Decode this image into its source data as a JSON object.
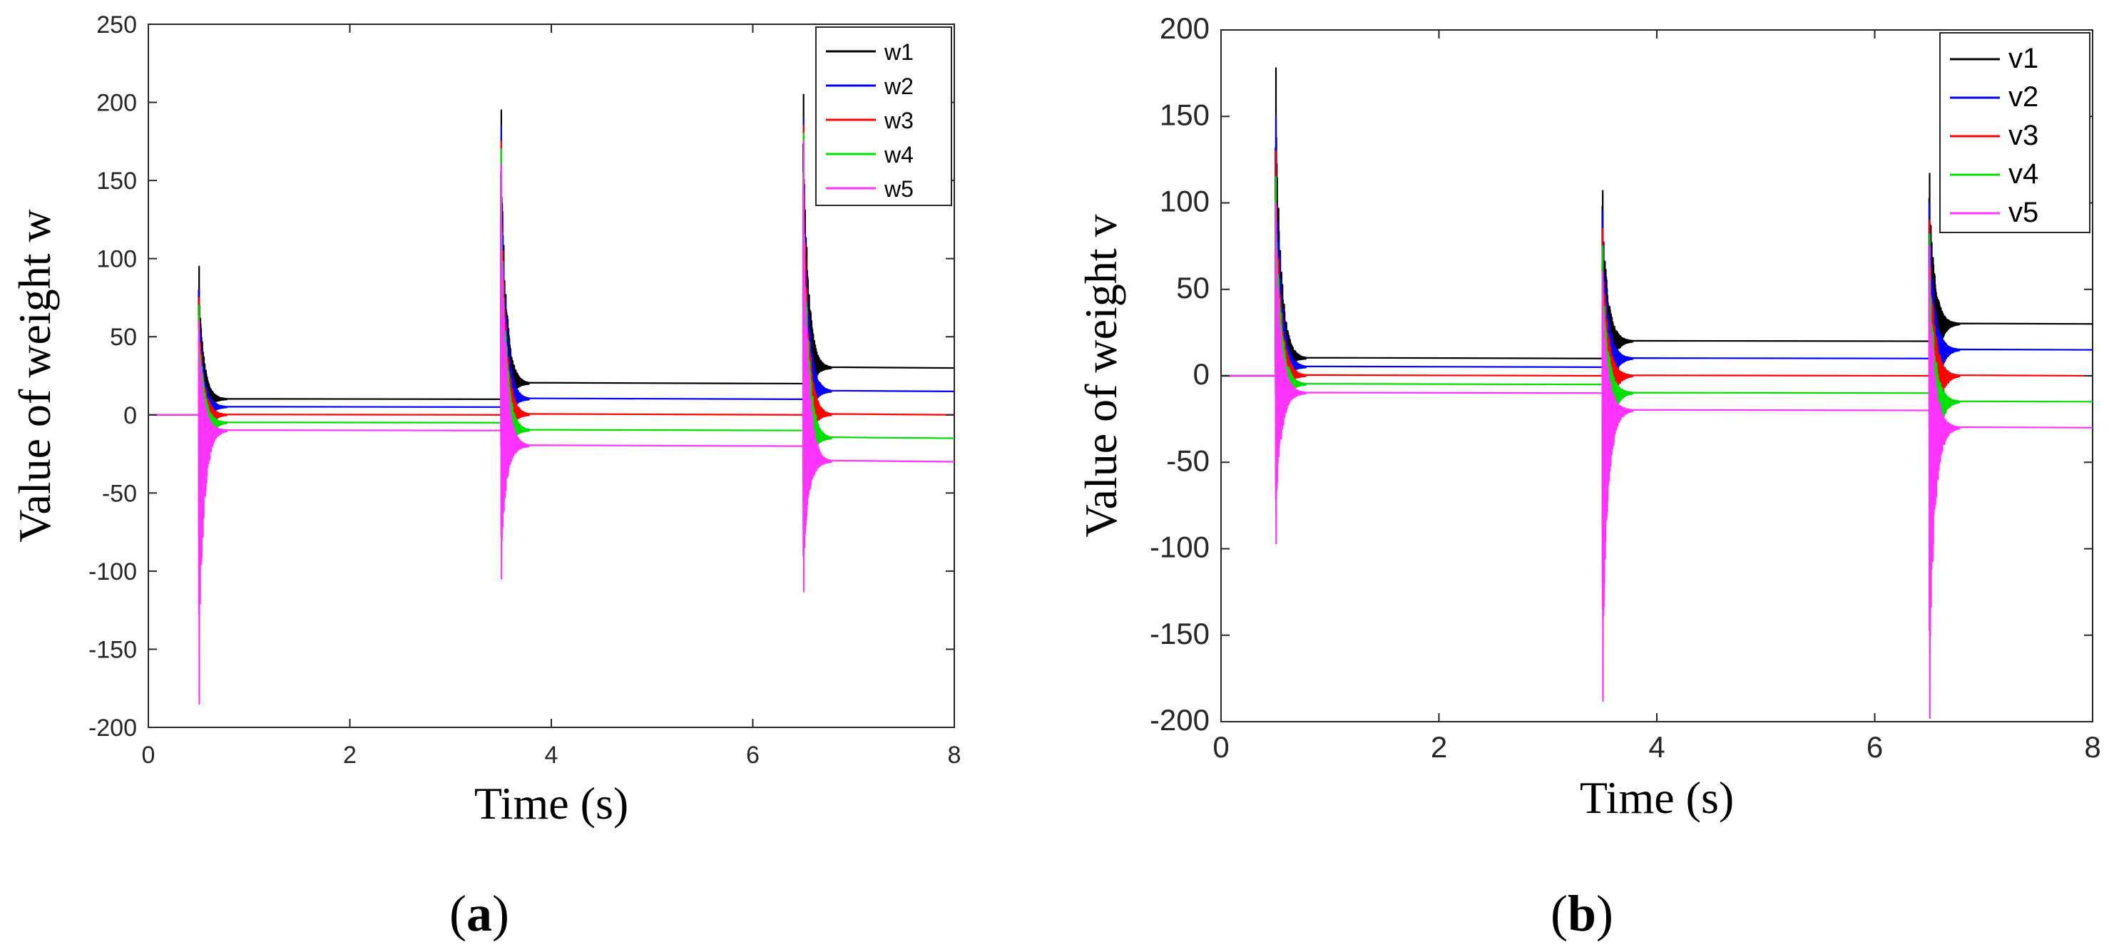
{
  "chart_data": [
    {
      "type": "line",
      "panel_label": "a",
      "xlabel": "Time (s)",
      "ylabel": "Value of weight w",
      "xlim": [
        0,
        8
      ],
      "ylim": [
        -200,
        250
      ],
      "xticks": [
        0,
        2,
        4,
        6,
        8
      ],
      "yticks": [
        -200,
        -150,
        -100,
        -50,
        0,
        50,
        100,
        150,
        200,
        250
      ],
      "legend_position": "top-right",
      "grid": false,
      "events": [
        0.5,
        3.5,
        6.5
      ],
      "series": [
        {
          "name": "w1",
          "color": "#000000",
          "segments": [
            {
              "t": [
                0.0,
                0.5
              ],
              "v": [
                0,
                0
              ]
            },
            {
              "t": [
                0.5,
                3.5
              ],
              "v": [
                10,
                10
              ],
              "spike_max": 95,
              "spike_min": -40
            },
            {
              "t": [
                3.5,
                6.5
              ],
              "v": [
                20,
                20
              ],
              "spike_max": 195,
              "spike_min": -60
            },
            {
              "t": [
                6.5,
                8.0
              ],
              "v": [
                30,
                30
              ],
              "spike_max": 205,
              "spike_min": -50
            }
          ]
        },
        {
          "name": "w2",
          "color": "#0000ff",
          "segments": [
            {
              "t": [
                0.0,
                0.5
              ],
              "v": [
                0,
                0
              ]
            },
            {
              "t": [
                0.5,
                3.5
              ],
              "v": [
                5,
                5
              ],
              "spike_max": 80,
              "spike_min": -60
            },
            {
              "t": [
                3.5,
                6.5
              ],
              "v": [
                10,
                10
              ],
              "spike_max": 185,
              "spike_min": -70
            },
            {
              "t": [
                6.5,
                8.0
              ],
              "v": [
                15,
                15
              ],
              "spike_max": 190,
              "spike_min": -70
            }
          ]
        },
        {
          "name": "w3",
          "color": "#ff0000",
          "segments": [
            {
              "t": [
                0.0,
                0.5
              ],
              "v": [
                0,
                0
              ]
            },
            {
              "t": [
                0.5,
                3.5
              ],
              "v": [
                0,
                0
              ],
              "spike_max": 75,
              "spike_min": -90
            },
            {
              "t": [
                3.5,
                6.5
              ],
              "v": [
                0,
                0
              ],
              "spike_max": 175,
              "spike_min": -80
            },
            {
              "t": [
                6.5,
                8.0
              ],
              "v": [
                0,
                0
              ],
              "spike_max": 185,
              "spike_min": -80
            }
          ]
        },
        {
          "name": "w4",
          "color": "#00e000",
          "segments": [
            {
              "t": [
                0.0,
                0.5
              ],
              "v": [
                0,
                0
              ]
            },
            {
              "t": [
                0.5,
                3.5
              ],
              "v": [
                -5,
                -5
              ],
              "spike_max": 70,
              "spike_min": -120
            },
            {
              "t": [
                3.5,
                6.5
              ],
              "v": [
                -10,
                -10
              ],
              "spike_max": 170,
              "spike_min": -90
            },
            {
              "t": [
                6.5,
                8.0
              ],
              "v": [
                -15,
                -15
              ],
              "spike_max": 180,
              "spike_min": -95
            }
          ]
        },
        {
          "name": "w5",
          "color": "#ff33ff",
          "segments": [
            {
              "t": [
                0.0,
                0.5
              ],
              "v": [
                0,
                0
              ]
            },
            {
              "t": [
                0.5,
                3.5
              ],
              "v": [
                -10,
                -10
              ],
              "spike_max": 60,
              "spike_min": -185
            },
            {
              "t": [
                3.5,
                6.5
              ],
              "v": [
                -20,
                -20
              ],
              "spike_max": 160,
              "spike_min": -105
            },
            {
              "t": [
                6.5,
                8.0
              ],
              "v": [
                -30,
                -30
              ],
              "spike_max": 175,
              "spike_min": -113
            }
          ]
        }
      ]
    },
    {
      "type": "line",
      "panel_label": "b",
      "xlabel": "Time (s)",
      "ylabel": "Value of weight v",
      "xlim": [
        0,
        8
      ],
      "ylim": [
        -200,
        200
      ],
      "xticks": [
        0,
        2,
        4,
        6,
        8
      ],
      "yticks": [
        -200,
        -150,
        -100,
        -50,
        0,
        50,
        100,
        150,
        200
      ],
      "legend_position": "top-right",
      "grid": false,
      "events": [
        0.5,
        3.5,
        6.5
      ],
      "series": [
        {
          "name": "v1",
          "color": "#000000",
          "segments": [
            {
              "t": [
                0.0,
                0.5
              ],
              "v": [
                0,
                0
              ]
            },
            {
              "t": [
                0.5,
                3.5
              ],
              "v": [
                10,
                10
              ],
              "spike_max": 178,
              "spike_min": -50
            },
            {
              "t": [
                3.5,
                6.5
              ],
              "v": [
                20,
                20
              ],
              "spike_max": 107,
              "spike_min": -80
            },
            {
              "t": [
                6.5,
                8.0
              ],
              "v": [
                30,
                30
              ],
              "spike_max": 117,
              "spike_min": -80
            }
          ]
        },
        {
          "name": "v2",
          "color": "#0000ff",
          "segments": [
            {
              "t": [
                0.0,
                0.5
              ],
              "v": [
                0,
                0
              ]
            },
            {
              "t": [
                0.5,
                3.5
              ],
              "v": [
                5,
                5
              ],
              "spike_max": 150,
              "spike_min": -60
            },
            {
              "t": [
                3.5,
                6.5
              ],
              "v": [
                10,
                10
              ],
              "spike_max": 95,
              "spike_min": -100
            },
            {
              "t": [
                6.5,
                8.0
              ],
              "v": [
                15,
                15
              ],
              "spike_max": 100,
              "spike_min": -110
            }
          ]
        },
        {
          "name": "v3",
          "color": "#ff0000",
          "segments": [
            {
              "t": [
                0.0,
                0.5
              ],
              "v": [
                0,
                0
              ]
            },
            {
              "t": [
                0.5,
                3.5
              ],
              "v": [
                0,
                0
              ],
              "spike_max": 130,
              "spike_min": -70
            },
            {
              "t": [
                3.5,
                6.5
              ],
              "v": [
                0,
                0
              ],
              "spike_max": 85,
              "spike_min": -120
            },
            {
              "t": [
                6.5,
                8.0
              ],
              "v": [
                0,
                0
              ],
              "spike_max": 90,
              "spike_min": -140
            }
          ]
        },
        {
          "name": "v4",
          "color": "#00e000",
          "segments": [
            {
              "t": [
                0.0,
                0.5
              ],
              "v": [
                0,
                0
              ]
            },
            {
              "t": [
                0.5,
                3.5
              ],
              "v": [
                -5,
                -5
              ],
              "spike_max": 115,
              "spike_min": -80
            },
            {
              "t": [
                3.5,
                6.5
              ],
              "v": [
                -10,
                -10
              ],
              "spike_max": 75,
              "spike_min": -140
            },
            {
              "t": [
                6.5,
                8.0
              ],
              "v": [
                -15,
                -15
              ],
              "spike_max": 82,
              "spike_min": -160
            }
          ]
        },
        {
          "name": "v5",
          "color": "#ff33ff",
          "segments": [
            {
              "t": [
                0.0,
                0.5
              ],
              "v": [
                0,
                0
              ]
            },
            {
              "t": [
                0.5,
                3.5
              ],
              "v": [
                -10,
                -10
              ],
              "spike_max": 100,
              "spike_min": -97
            },
            {
              "t": [
                3.5,
                6.5
              ],
              "v": [
                -20,
                -20
              ],
              "spike_max": 60,
              "spike_min": -188
            },
            {
              "t": [
                6.5,
                8.0
              ],
              "v": [
                -30,
                -30
              ],
              "spike_max": 75,
              "spike_min": -198
            }
          ]
        }
      ]
    }
  ]
}
